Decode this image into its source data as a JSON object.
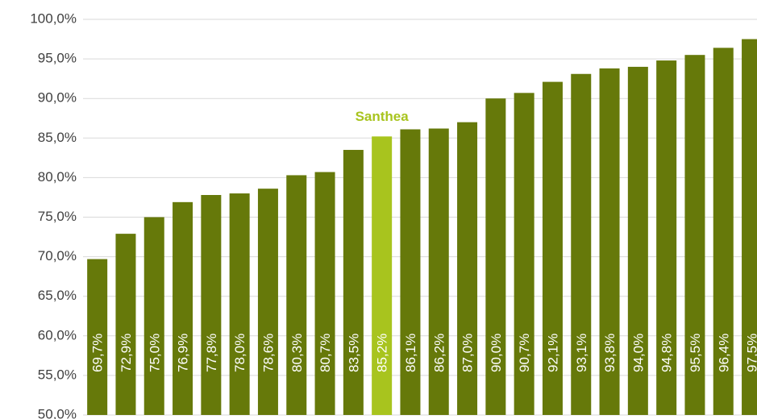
{
  "chart_data": {
    "type": "bar",
    "categories": [
      null,
      null,
      null,
      null,
      null,
      null,
      null,
      null,
      null,
      null,
      null,
      null,
      null,
      null,
      null,
      null,
      null,
      null,
      null,
      null,
      null,
      null,
      null,
      null
    ],
    "values": [
      69.7,
      72.9,
      75.0,
      76.9,
      77.8,
      78.0,
      78.6,
      80.3,
      80.7,
      83.5,
      85.2,
      86.1,
      86.2,
      87.0,
      90.0,
      90.7,
      92.1,
      93.1,
      93.8,
      94.0,
      94.8,
      95.5,
      96.4,
      97.5
    ],
    "value_labels": [
      "69,7%",
      "72,9%",
      "75,0%",
      "76,9%",
      "77,8%",
      "78,0%",
      "78,6%",
      "80,3%",
      "80,7%",
      "83,5%",
      "85,2%",
      "86,1%",
      "86,2%",
      "87,0%",
      "90,0%",
      "90,7%",
      "92,1%",
      "93,1%",
      "93,8%",
      "94,0%",
      "94,8%",
      "95,5%",
      "96,4%",
      "97,5%"
    ],
    "colors": [
      "#66790a",
      "#66790a",
      "#66790a",
      "#66790a",
      "#66790a",
      "#66790a",
      "#66790a",
      "#66790a",
      "#66790a",
      "#66790a",
      "#a8c41e",
      "#66790a",
      "#66790a",
      "#66790a",
      "#66790a",
      "#66790a",
      "#66790a",
      "#66790a",
      "#66790a",
      "#66790a",
      "#66790a",
      "#66790a",
      "#66790a",
      "#66790a"
    ],
    "annotations": [
      {
        "text": "Santhea",
        "index": 10,
        "color": "#a8c41e"
      }
    ],
    "ylim": [
      50,
      100
    ],
    "yticks": [
      {
        "value": 50,
        "label": "50,0%"
      },
      {
        "value": 55,
        "label": "55,0%"
      },
      {
        "value": 60,
        "label": "60,0%"
      },
      {
        "value": 65,
        "label": "65,0%"
      },
      {
        "value": 70,
        "label": "70,0%"
      },
      {
        "value": 75,
        "label": "75,0%"
      },
      {
        "value": 80,
        "label": "80,0%"
      },
      {
        "value": 85,
        "label": "85,0%"
      },
      {
        "value": 90,
        "label": "90,0%"
      },
      {
        "value": 95,
        "label": "95,0%"
      },
      {
        "value": 100,
        "label": "100,0%"
      }
    ],
    "grid": true
  }
}
